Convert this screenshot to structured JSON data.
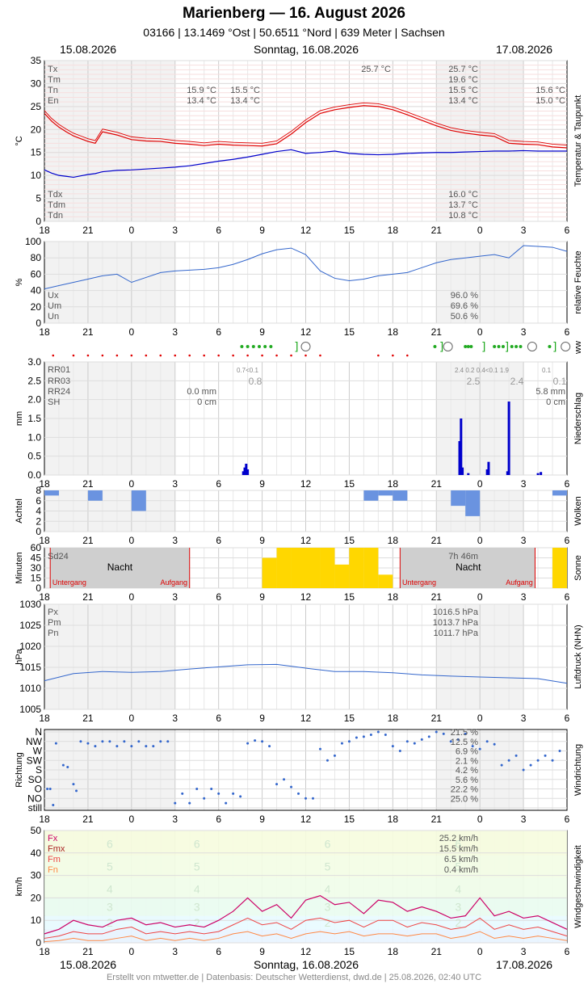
{
  "header": {
    "title": "Marienberg  —  16. August 2026",
    "subtitle": "03166  |  13.1469 °Ost  |  50.6511 °Nord  |  639 Meter  |  Sachsen"
  },
  "dates": {
    "left": "15.08.2026",
    "center": "Sonntag, 16.08.2026",
    "right": "17.08.2026"
  },
  "footer": "Erstellt von mtwetter.de | Datenbasis: Deutscher Wetterdienst, dwd.de | 25.08.2026, 02:40 UTC",
  "colors": {
    "temp": "#e00000",
    "dew": "#0000cc",
    "line": "#3366cc",
    "rain": "#0000cc",
    "cloud": "#6a93e0",
    "sun": "#ffd700",
    "fx": "#cc0066",
    "fmx": "#aa2222",
    "fm": "#ee4444",
    "fn": "#ff8844"
  },
  "x_axis": {
    "ticks": [
      "18",
      "21",
      "0",
      "3",
      "6",
      "9",
      "12",
      "15",
      "18",
      "21",
      "0",
      "3",
      "6"
    ],
    "range_hours": [
      0,
      36
    ]
  },
  "chart_data": [
    {
      "panel": "temperature",
      "type": "line",
      "ylabel": "°C",
      "side_label": "Temperatur & Taupunkt",
      "ylim": [
        0,
        35
      ],
      "yticks": [
        "0",
        "5",
        "10",
        "15",
        "20",
        "25",
        "30",
        "35"
      ],
      "stats": [
        {
          "label": "Tx",
          "values": [
            "",
            "",
            "25.7 °C",
            "25.7 °C",
            ""
          ]
        },
        {
          "label": "Tm",
          "values": [
            "",
            "",
            "",
            "19.6 °C",
            ""
          ]
        },
        {
          "label": "Tn",
          "values": [
            "15.9 °C",
            "15.5 °C",
            "",
            "15.5 °C",
            "15.6 °C"
          ]
        },
        {
          "label": "En",
          "values": [
            "13.4 °C",
            "13.4 °C",
            "",
            "13.4 °C",
            "15.0 °C"
          ]
        }
      ],
      "stats2": [
        {
          "label": "Tdx",
          "value": "16.0 °C"
        },
        {
          "label": "Tdm",
          "value": "13.7 °C"
        },
        {
          "label": "Tdn",
          "value": "10.8 °C"
        }
      ],
      "x": [
        0,
        0.5,
        1,
        1.5,
        2,
        2.5,
        3,
        3.5,
        4,
        5,
        6,
        7,
        8,
        9,
        10,
        11,
        12,
        13,
        14,
        15,
        16,
        17,
        18,
        19,
        20,
        21,
        22,
        23,
        24,
        25,
        26,
        27,
        28,
        29,
        30,
        31,
        32,
        33,
        34,
        35,
        36
      ],
      "series": [
        {
          "name": "T",
          "values": [
            23.5,
            21.8,
            20.5,
            19.5,
            18.6,
            18.0,
            17.4,
            17.0,
            19.5,
            18.8,
            17.8,
            17.5,
            17.4,
            17.0,
            16.8,
            16.5,
            16.8,
            16.6,
            16.5,
            16.4,
            16.9,
            19.0,
            21.5,
            23.5,
            24.3,
            24.8,
            25.2,
            25.0,
            24.3,
            23.2,
            22.0,
            20.8,
            19.8,
            19.2,
            18.8,
            18.5,
            17.0,
            16.8,
            16.7,
            16.2,
            16.0
          ]
        },
        {
          "name": "Td",
          "values": [
            11.2,
            10.5,
            10.0,
            9.8,
            9.6,
            9.9,
            10.2,
            10.4,
            10.8,
            11.1,
            11.2,
            11.4,
            11.6,
            11.8,
            12.1,
            12.6,
            13.1,
            13.5,
            14.0,
            14.6,
            15.2,
            15.6,
            14.8,
            15.0,
            15.3,
            14.8,
            14.6,
            14.5,
            14.6,
            14.8,
            14.9,
            15.0,
            15.0,
            15.1,
            15.2,
            15.3,
            15.3,
            15.4,
            15.3,
            15.3,
            15.3
          ]
        }
      ]
    },
    {
      "panel": "humidity",
      "type": "line",
      "ylabel": "%",
      "side_label": "relative Feuchte",
      "ylim": [
        0,
        100
      ],
      "yticks": [
        "0",
        "20",
        "40",
        "60",
        "80",
        "100"
      ],
      "stats": [
        {
          "label": "Ux",
          "value": "96.0 %"
        },
        {
          "label": "Um",
          "value": "69.6 %"
        },
        {
          "label": "Un",
          "value": "50.6 %"
        }
      ],
      "x": [
        0,
        1,
        2,
        3,
        4,
        5,
        6,
        7,
        8,
        9,
        10,
        11,
        12,
        13,
        14,
        15,
        16,
        17,
        18,
        19,
        20,
        21,
        22,
        23,
        24,
        25,
        26,
        27,
        28,
        29,
        30,
        31,
        32,
        33,
        34,
        35,
        36
      ],
      "series": [
        {
          "name": "U",
          "values": [
            42,
            46,
            50,
            54,
            58,
            60,
            50,
            56,
            62,
            64,
            65,
            66,
            68,
            72,
            78,
            85,
            90,
            92,
            84,
            64,
            55,
            52,
            54,
            58,
            60,
            62,
            68,
            74,
            78,
            80,
            82,
            84,
            80,
            95,
            94,
            93,
            88
          ]
        }
      ]
    },
    {
      "panel": "precipitation",
      "type": "bar",
      "ylabel": "mm",
      "side_label": "Niederschlag",
      "ww_label": "ww",
      "ylim": [
        0,
        3.0
      ],
      "yticks": [
        "0.0",
        "0.5",
        "1.0",
        "1.5",
        "2.0",
        "2.5",
        "3.0"
      ],
      "stats": [
        {
          "label": "RR01",
          "values": [
            "",
            "0.7<0.1",
            "2.4  0.2  0.4<0.1  1.9",
            "0.1"
          ]
        },
        {
          "label": "RR03",
          "values": [
            "",
            "0.8",
            "2.5",
            "2.4",
            "0.1"
          ]
        },
        {
          "label": "RR24",
          "value": "0.0 mm",
          "value2": "5.8 mm"
        },
        {
          "label": "SH",
          "value": "0 cm",
          "value2": "0 cm"
        }
      ],
      "x": [
        13.7,
        13.8,
        13.9,
        14.0,
        28.6,
        28.7,
        28.8,
        29.2,
        30.5,
        30.6,
        31.9,
        32.0,
        34.0,
        34.2
      ],
      "values": [
        0.1,
        0.2,
        0.3,
        0.15,
        0.9,
        1.5,
        0.2,
        0.05,
        0.15,
        0.35,
        0.1,
        1.95,
        0.05,
        0.08
      ]
    },
    {
      "panel": "clouds",
      "type": "bar",
      "ylabel": "Achtel",
      "side_label": "Wolken",
      "ylim": [
        0,
        8
      ],
      "yticks": [
        "0",
        "2",
        "4",
        "6",
        "8"
      ],
      "x": [
        0,
        1,
        2,
        3,
        4,
        5,
        6,
        7,
        8,
        9,
        10,
        11,
        12,
        13,
        14,
        15,
        16,
        17,
        18,
        19,
        20,
        21,
        22,
        23,
        24,
        25,
        26,
        27,
        28,
        29,
        30,
        31,
        32,
        33,
        34,
        35
      ],
      "values": [
        7,
        8,
        8,
        6,
        8,
        8,
        4,
        0,
        0,
        0,
        0,
        0,
        0,
        0,
        0,
        0,
        0,
        0,
        0,
        8,
        8,
        8,
        6,
        7,
        6,
        8,
        8,
        8,
        5,
        3,
        0,
        0,
        0,
        0,
        0,
        7
      ]
    },
    {
      "panel": "sunshine",
      "type": "bar",
      "ylabel": "Minuten",
      "side_label": "Sonne",
      "ylim": [
        0,
        60
      ],
      "yticks": [
        "0",
        "15",
        "30",
        "45",
        "60"
      ],
      "sd24": "Sd24",
      "sum2": "7h 46m",
      "night": "Nacht",
      "sunset": "Untergang",
      "sunrise": "Aufgang",
      "x": [
        15,
        16,
        17,
        18,
        19,
        20,
        21,
        22,
        23,
        24,
        25
      ],
      "values": [
        45,
        60,
        60,
        60,
        60,
        35,
        60,
        60,
        20,
        0,
        0
      ],
      "x2": [
        35
      ],
      "values2": [
        60
      ]
    },
    {
      "panel": "pressure",
      "type": "line",
      "ylabel": "hPa",
      "side_label": "Luftdruck (NHN)",
      "ylim": [
        1005,
        1030
      ],
      "yticks": [
        "1005",
        "1010",
        "1015",
        "1020",
        "1025",
        "1030"
      ],
      "stats": [
        {
          "label": "Px",
          "value": "1016.5 hPa"
        },
        {
          "label": "Pm",
          "value": "1013.7 hPa"
        },
        {
          "label": "Pn",
          "value": "1011.7 hPa"
        }
      ],
      "x": [
        0,
        2,
        4,
        6,
        8,
        10,
        12,
        14,
        16,
        18,
        20,
        22,
        24,
        26,
        28,
        30,
        32,
        34,
        36
      ],
      "series": [
        {
          "name": "P",
          "values": [
            1011.8,
            1013.5,
            1014.0,
            1013.8,
            1014.0,
            1014.6,
            1015.1,
            1015.6,
            1015.7,
            1014.8,
            1014.0,
            1014.0,
            1013.7,
            1013.2,
            1012.9,
            1012.7,
            1012.5,
            1012.3,
            1011.2
          ]
        }
      ]
    },
    {
      "panel": "wind_direction",
      "type": "scatter",
      "ylabel": "Richtung",
      "side_label": "Windrichtung",
      "categories": [
        "N",
        "NW",
        "W",
        "SW",
        "S",
        "SO",
        "O",
        "NO",
        "still"
      ],
      "stats": [
        {
          "label": "",
          "value": "21.5 %"
        },
        {
          "label": "",
          "value": "12.5 %"
        },
        {
          "label": "",
          "value": "6.9 %"
        },
        {
          "label": "",
          "value": "2.1 %"
        },
        {
          "label": "",
          "value": "4.2 %"
        },
        {
          "label": "",
          "value": "5.6 %"
        },
        {
          "label": "",
          "value": "22.2 %"
        },
        {
          "label": "",
          "value": "25.0 %"
        }
      ],
      "x": [
        0.2,
        0.4,
        0.6,
        0.8,
        1.3,
        1.6,
        2.0,
        2.2,
        2.5,
        3.0,
        3.5,
        4.0,
        4.5,
        5.0,
        5.5,
        6.0,
        6.5,
        7.0,
        7.5,
        8.0,
        8.5,
        9.0,
        9.5,
        10.0,
        10.5,
        11.0,
        11.5,
        12.0,
        12.5,
        13.0,
        13.5,
        14.0,
        14.5,
        15.0,
        15.5,
        16.0,
        16.5,
        17.0,
        17.5,
        18.0,
        18.5,
        19.0,
        19.5,
        20.0,
        20.5,
        21.0,
        21.5,
        22.0,
        22.5,
        23.0,
        23.5,
        24.0,
        24.5,
        25.0,
        25.5,
        26.0,
        26.5,
        27.0,
        27.5,
        28.0,
        28.5,
        29.0,
        29.5,
        30.0,
        30.5,
        31.0,
        31.5,
        32.0,
        32.5,
        33.0,
        33.5,
        34.0,
        34.5,
        35.0,
        35.5
      ],
      "values": [
        2,
        2,
        0.3,
        6.8,
        4.5,
        4.3,
        2.5,
        1.8,
        7,
        6.8,
        6.5,
        7,
        7,
        6.5,
        7,
        6.5,
        7,
        6.5,
        6.5,
        7,
        7,
        0.5,
        1.5,
        0.5,
        2,
        1,
        2,
        1.5,
        0.5,
        1.5,
        1.2,
        6.8,
        7.1,
        7,
        6.5,
        2.5,
        3,
        2.2,
        1.5,
        1,
        1,
        6.2,
        5,
        5.5,
        6.8,
        7,
        7.4,
        7.5,
        7.7,
        8,
        7.7,
        6.5,
        6,
        7,
        6.8,
        7.2,
        7.5,
        8,
        7.8,
        7,
        7.2,
        7.8,
        6.5,
        6.2,
        7,
        6.7,
        4.5,
        5,
        5.5,
        4,
        4.5,
        5,
        5.5,
        5,
        6
      ]
    },
    {
      "panel": "wind_speed",
      "type": "line",
      "ylabel": "km/h",
      "side_label": "Windgeschwindigkeit",
      "ylim": [
        0,
        50
      ],
      "yticks": [
        "0",
        "10",
        "20",
        "30",
        "40",
        "50"
      ],
      "beaufort": [
        "6",
        "5",
        "4",
        "3",
        "2",
        "1"
      ],
      "stats": [
        {
          "label": "Fx",
          "value": "25.2 km/h"
        },
        {
          "label": "Fmx",
          "value": "15.5 km/h"
        },
        {
          "label": "Fm",
          "value": "6.5 km/h"
        },
        {
          "label": "Fn",
          "value": "0.4 km/h"
        }
      ],
      "x": [
        0,
        1,
        2,
        3,
        4,
        5,
        6,
        7,
        8,
        9,
        10,
        11,
        12,
        13,
        14,
        15,
        16,
        17,
        18,
        19,
        20,
        21,
        22,
        23,
        24,
        25,
        26,
        27,
        28,
        29,
        30,
        31,
        32,
        33,
        34,
        35,
        36
      ],
      "series": [
        {
          "name": "Fx",
          "values": [
            4,
            6,
            10,
            8,
            7,
            10,
            11,
            8,
            9,
            7,
            8,
            7,
            10,
            14,
            20,
            14,
            17,
            11,
            19,
            21,
            17,
            18,
            13,
            19,
            18,
            14,
            16,
            14,
            11,
            12,
            20,
            12,
            14,
            11,
            12,
            9,
            6
          ]
        },
        {
          "name": "Fm",
          "values": [
            2,
            3,
            5,
            4,
            4,
            6,
            7,
            4,
            5,
            4,
            5,
            4,
            5,
            8,
            11,
            8,
            9,
            6,
            10,
            11,
            9,
            10,
            7,
            10,
            10,
            7,
            9,
            8,
            6,
            7,
            11,
            6,
            8,
            6,
            7,
            5,
            3
          ]
        },
        {
          "name": "Fn",
          "values": [
            0.5,
            1,
            2,
            1,
            1,
            2,
            3,
            1,
            2,
            1,
            2,
            1,
            2,
            4,
            5,
            3,
            4,
            2,
            4,
            5,
            4,
            5,
            3,
            4,
            4,
            3,
            4,
            4,
            2,
            3,
            5,
            2,
            3,
            2,
            3,
            2,
            1
          ]
        }
      ]
    }
  ]
}
